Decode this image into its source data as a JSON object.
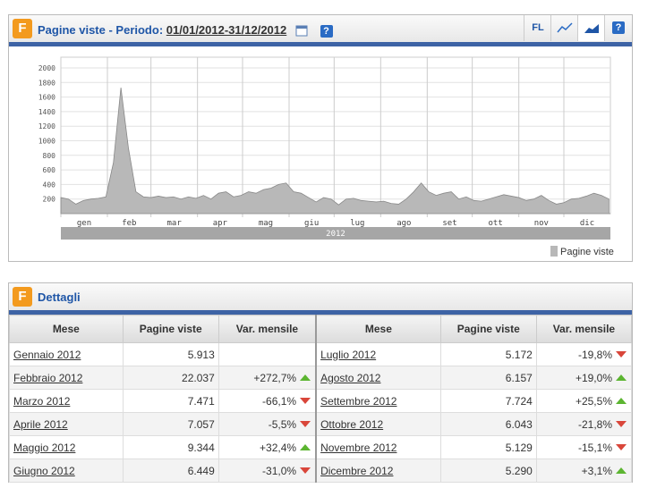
{
  "header": {
    "title": "Pagine viste - Periodo:",
    "period": "01/01/2012-31/12/2012",
    "fl": "FL",
    "help": "?"
  },
  "chart_data": {
    "type": "area",
    "band_label": "2012",
    "x": [
      1,
      6,
      11,
      16,
      21,
      26,
      31,
      36,
      41,
      46,
      51,
      56,
      61,
      66,
      71,
      76,
      81,
      86,
      91,
      96,
      101,
      106,
      111,
      116,
      121,
      126,
      131,
      136,
      141,
      146,
      151,
      156,
      161,
      166,
      171,
      176,
      181,
      186,
      191,
      196,
      201,
      206,
      211,
      216,
      221,
      226,
      231,
      236,
      241,
      246,
      251,
      256,
      261,
      266,
      271,
      276,
      281,
      286,
      291,
      296,
      301,
      306,
      311,
      316,
      321,
      326,
      331,
      336,
      341,
      346,
      351,
      356,
      361,
      366
    ],
    "series": [
      {
        "name": "Pagine viste",
        "color": "#b8b8b8",
        "values": [
          220,
          200,
          130,
          180,
          200,
          210,
          230,
          700,
          1730,
          900,
          300,
          230,
          220,
          240,
          220,
          230,
          200,
          230,
          210,
          250,
          200,
          280,
          300,
          230,
          250,
          300,
          280,
          330,
          350,
          400,
          420,
          300,
          280,
          220,
          160,
          220,
          200,
          120,
          200,
          210,
          180,
          170,
          160,
          170,
          140,
          130,
          200,
          300,
          420,
          300,
          250,
          280,
          300,
          200,
          230,
          180,
          170,
          200,
          230,
          260,
          240,
          220,
          180,
          200,
          250,
          180,
          130,
          150,
          200,
          210,
          240,
          280,
          250,
          200
        ]
      }
    ],
    "xlim": [
      1,
      367
    ],
    "xticks": [
      {
        "value": 1,
        "label": "gen"
      },
      {
        "value": 32,
        "label": "feb"
      },
      {
        "value": 61,
        "label": "mar"
      },
      {
        "value": 92,
        "label": "apr"
      },
      {
        "value": 122,
        "label": "mag"
      },
      {
        "value": 153,
        "label": "giu"
      },
      {
        "value": 183,
        "label": "lug"
      },
      {
        "value": 214,
        "label": "ago"
      },
      {
        "value": 245,
        "label": "set"
      },
      {
        "value": 275,
        "label": "ott"
      },
      {
        "value": 306,
        "label": "nov"
      },
      {
        "value": 336,
        "label": "dic"
      }
    ],
    "ylim": [
      0,
      2000
    ],
    "yticks": [
      200,
      400,
      600,
      800,
      1000,
      1200,
      1400,
      1600,
      1800,
      2000
    ],
    "grid": true,
    "legend": "bottom-right"
  },
  "details": {
    "title": "Dettagli",
    "columns": [
      "Mese",
      "Pagine viste",
      "Var. mensile"
    ],
    "rows": [
      [
        "Gennaio 2012",
        "5.913",
        null,
        "Luglio 2012",
        "5.172",
        "-19,8%"
      ],
      [
        "Febbraio 2012",
        "22.037",
        "+272,7%",
        "Agosto 2012",
        "6.157",
        "+19,0%"
      ],
      [
        "Marzo 2012",
        "7.471",
        "-66,1%",
        "Settembre 2012",
        "7.724",
        "+25,5%"
      ],
      [
        "Aprile 2012",
        "7.057",
        "-5,5%",
        "Ottobre 2012",
        "6.043",
        "-21,8%"
      ],
      [
        "Maggio 2012",
        "9.344",
        "+32,4%",
        "Novembre 2012",
        "5.129",
        "-15,1%"
      ],
      [
        "Giugno 2012",
        "6.449",
        "-31,0%",
        "Dicembre 2012",
        "5.290",
        "+3,1%"
      ]
    ]
  }
}
